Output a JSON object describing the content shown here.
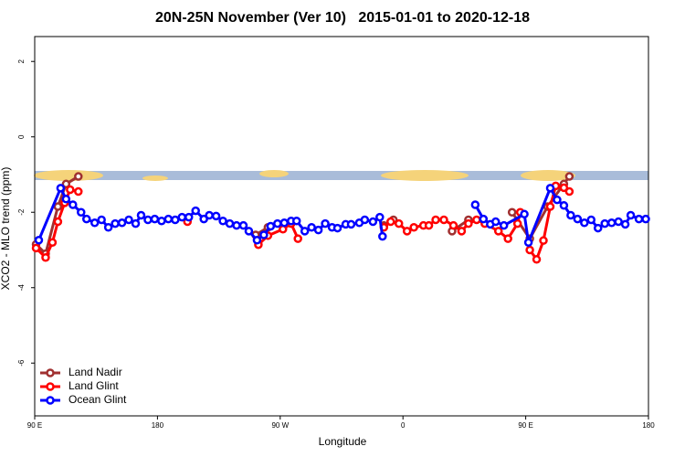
{
  "chart_data": {
    "type": "line",
    "title": "20N-25N November (Ver 10)   2015-01-01 to 2020-12-18",
    "x_label": "Longitude",
    "y_label": "XCO2 - MLO trend (ppm)",
    "xlim": [
      90,
      540
    ],
    "ylim": [
      -7.4,
      2.66
    ],
    "xticks": [
      {
        "value": 90,
        "label": "90 E"
      },
      {
        "value": 180,
        "label": "180"
      },
      {
        "value": 270,
        "label": "90 W"
      },
      {
        "value": 360,
        "label": "0"
      },
      {
        "value": 450,
        "label": "90 E"
      },
      {
        "value": 540,
        "label": "180"
      }
    ],
    "yticks": [
      2,
      0,
      -2,
      -4,
      -6
    ],
    "legend": "bottom-left",
    "series": [
      {
        "name": "Land Nadir",
        "color": "#a03030",
        "x": [
          91,
          98,
          107,
          113,
          122,
          null,
          252,
          261,
          null,
          346,
          353,
          null,
          396,
          408,
          null,
          440,
          453,
          466,
          478,
          482
        ],
        "values": [
          -2.85,
          -3.1,
          -1.85,
          -1.25,
          -1.05,
          null,
          -2.6,
          -2.4,
          null,
          -2.35,
          -2.2,
          null,
          -2.5,
          -2.2,
          null,
          -2.0,
          -2.7,
          -1.85,
          -1.25,
          -1.05
        ]
      },
      {
        "name": "Land Glint",
        "color": "#ff0000",
        "x": [
          91,
          98,
          103,
          107,
          112,
          116,
          122,
          null,
          202,
          null,
          254,
          261,
          272,
          278,
          283,
          null,
          346,
          351,
          357,
          363,
          368,
          375,
          379,
          384,
          390,
          397,
          403,
          408,
          414,
          420,
          430,
          437,
          444,
          446,
          null,
          453,
          458,
          463,
          468,
          472,
          478,
          482
        ],
        "values": [
          -2.95,
          -3.2,
          -2.8,
          -2.25,
          -1.75,
          -1.4,
          -1.45,
          null,
          -2.25,
          null,
          -2.86,
          -2.62,
          -2.45,
          -2.3,
          -2.7,
          null,
          -2.4,
          -2.25,
          -2.3,
          -2.5,
          -2.4,
          -2.35,
          -2.35,
          -2.2,
          -2.2,
          -2.35,
          -2.5,
          -2.3,
          -2.2,
          -2.3,
          -2.5,
          -2.7,
          -2.3,
          -2.0,
          null,
          -3.0,
          -3.25,
          -2.75,
          -1.85,
          -1.3,
          -1.35,
          -1.45
        ]
      },
      {
        "name": "Ocean Glint",
        "color": "#0000ff",
        "x": [
          93,
          109,
          113,
          118,
          124,
          128,
          134,
          139,
          144,
          149,
          154,
          159,
          164,
          168,
          173,
          178,
          183,
          188,
          193,
          198,
          203,
          208,
          214,
          218,
          223,
          228,
          233,
          238,
          243,
          247,
          253,
          258,
          263,
          268,
          273,
          278,
          282,
          288,
          293,
          298,
          303,
          308,
          312,
          318,
          322,
          328,
          332,
          338,
          343,
          345,
          null,
          413,
          419,
          424,
          428,
          434,
          449,
          452,
          468,
          473,
          478,
          483,
          488,
          493,
          498,
          503,
          508,
          513,
          518,
          523,
          527,
          533,
          538
        ],
        "values": [
          -2.74,
          -1.36,
          -1.65,
          -1.8,
          -2.0,
          -2.18,
          -2.28,
          -2.2,
          -2.4,
          -2.3,
          -2.28,
          -2.2,
          -2.3,
          -2.08,
          -2.2,
          -2.18,
          -2.23,
          -2.18,
          -2.2,
          -2.13,
          -2.13,
          -1.96,
          -2.18,
          -2.08,
          -2.1,
          -2.23,
          -2.3,
          -2.35,
          -2.35,
          -2.5,
          -2.74,
          -2.6,
          -2.37,
          -2.3,
          -2.28,
          -2.23,
          -2.23,
          -2.5,
          -2.4,
          -2.47,
          -2.3,
          -2.4,
          -2.42,
          -2.32,
          -2.32,
          -2.28,
          -2.2,
          -2.25,
          -2.13,
          -2.64,
          null,
          -1.8,
          -2.18,
          -2.32,
          -2.25,
          -2.35,
          -2.05,
          -2.8,
          -1.36,
          -1.67,
          -1.82,
          -2.08,
          -2.18,
          -2.28,
          -2.2,
          -2.42,
          -2.3,
          -2.28,
          -2.25,
          -2.32,
          -2.08,
          -2.18,
          -2.18
        ]
      }
    ]
  }
}
